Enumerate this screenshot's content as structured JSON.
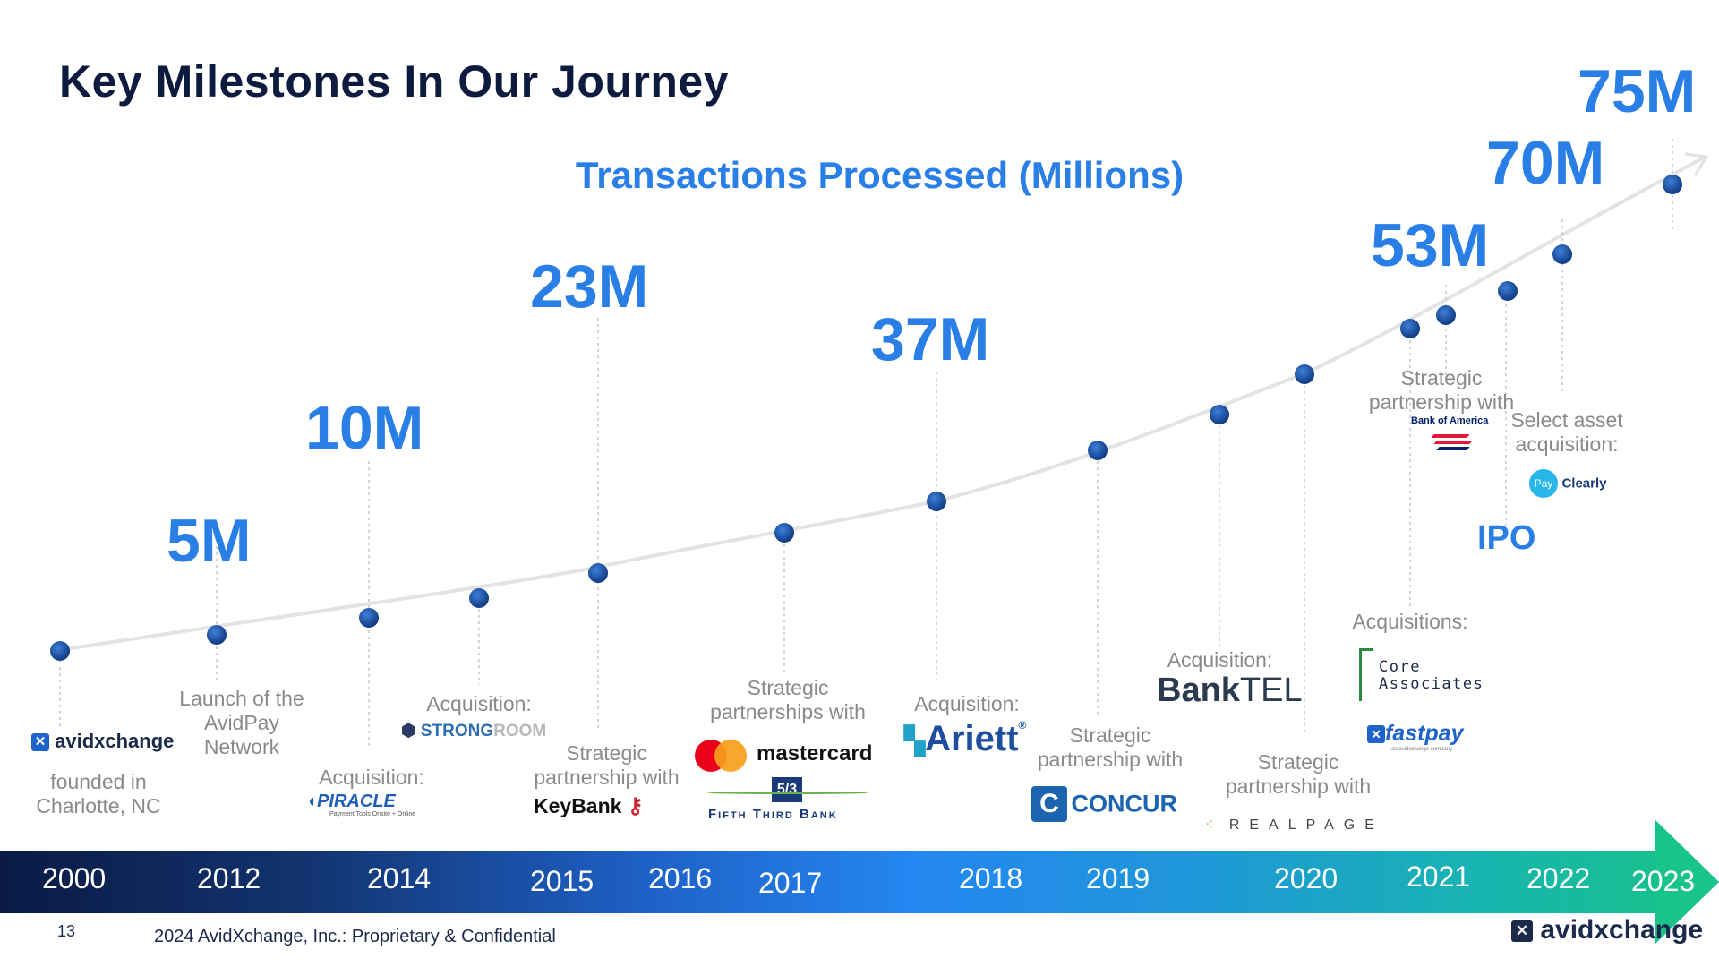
{
  "header": {
    "title": "Key Milestones In Our Journey",
    "subtitle": "Transactions Processed (Millions)"
  },
  "values": {
    "v5": "5M",
    "v10": "10M",
    "v23": "23M",
    "v37": "37M",
    "v53": "53M",
    "v70": "70M",
    "v75": "75M"
  },
  "milestones": {
    "founded": "founded in\nCharlotte, NC",
    "launch": "Launch of the\nAvidPay\nNetwork",
    "piracle": "Acquisition:",
    "strongroom": "Acquisition:",
    "keybank": "Strategic\npartnership with",
    "mastercard": "Strategic\npartnerships with",
    "ariett": "Acquisition:",
    "concur": "Strategic\npartnership with",
    "banktel": "Acquisition:",
    "realpage": "Strategic\npartnership with",
    "acquisitions2021": "Acquisitions:",
    "bofa": "Strategic\npartnership with",
    "payclearly": "Select asset\nacquisition:",
    "ipo": "IPO"
  },
  "logos": {
    "avidxchange": "avidxchange",
    "piracle": "PIRACLE",
    "piracle_tag": "Payment Tools Onsite + Online",
    "strongroom_a": "STRONG",
    "strongroom_b": "ROOM",
    "keybank": "KeyBank",
    "mastercard": "mastercard",
    "fifththird": "Fifth Third Bank",
    "ariett": "Ariett",
    "concur": "CONCUR",
    "banktel_a": "Bank",
    "banktel_b": "TEL",
    "realpage": "REALPAGE",
    "core_associates": "Core\nAssociates",
    "fastpay": "fastpay",
    "fastpay_tag": "an avidxchange company",
    "bofa": "Bank of America",
    "pay": "Pay",
    "clearly": "Clearly",
    "footer_logo": "avidxchange"
  },
  "years": [
    "2000",
    "2012",
    "2014",
    "2015",
    "2016",
    "2017",
    "2018",
    "2019",
    "2020",
    "2021",
    "2022",
    "2023"
  ],
  "footer": {
    "page": "13",
    "copyright": "2024 AvidXchange, Inc.: Proprietary & Confidential"
  },
  "colors": {
    "navy": "#0d1b3e",
    "accent_blue": "#2a7fe6",
    "gray_text": "#8a8a8a",
    "dot": "#1a4d9e"
  }
}
